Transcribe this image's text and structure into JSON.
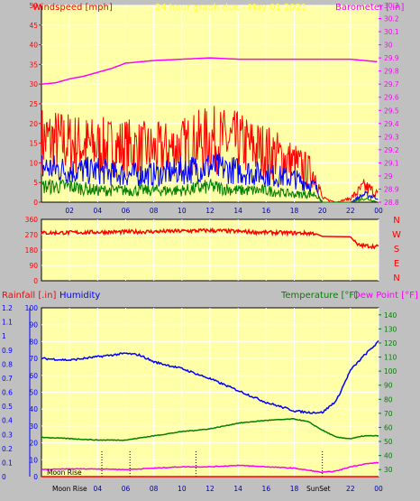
{
  "header": {
    "left_label": "Windspeed [mph]",
    "center_label": "24 hour graph due - May 01 2021",
    "right_label": "Barometer [.in]"
  },
  "colors": {
    "plot_bg": "#ffffa8",
    "frame_bg": "#c0c0c0",
    "red": "#ff0000",
    "blue": "#0000ff",
    "green": "#008000",
    "magenta": "#ff00ff",
    "yellow": "#ffff40",
    "grid": "#ffffff"
  },
  "chart_data": [
    {
      "type": "line",
      "name": "wind-barometer",
      "xlabel": "",
      "ylabel": "Windspeed [mph]",
      "y2label": "Barometer [.in]",
      "x_ticks": [
        "02",
        "04",
        "06",
        "08",
        "10",
        "12",
        "14",
        "16",
        "18",
        "20",
        "22",
        "00"
      ],
      "ylim": [
        0,
        50
      ],
      "y_ticks": [
        0,
        5,
        10,
        15,
        20,
        25,
        30,
        35,
        40,
        45,
        50
      ],
      "y2lim": [
        28.8,
        30.3
      ],
      "y2_ticks": [
        "28.8",
        "28.9",
        "29",
        "29.1",
        "29.2",
        "29.3",
        "29.4",
        "29.5",
        "29.6",
        "29.7",
        "29.8",
        "29.9",
        "30",
        "30.1",
        "30.2",
        "30.3"
      ],
      "series": [
        {
          "color": "red",
          "hours": [
            0,
            2,
            4,
            6,
            8,
            10,
            12,
            14,
            16,
            18,
            19.5,
            20,
            21,
            22,
            23,
            24
          ],
          "values": [
            16,
            15,
            14,
            14,
            13,
            14,
            16,
            15,
            13,
            10,
            7,
            1,
            0,
            1,
            4,
            2
          ]
        },
        {
          "color": "blue",
          "hours": [
            0,
            2,
            4,
            6,
            8,
            10,
            12,
            14,
            16,
            18,
            19.5,
            20,
            21,
            22,
            23,
            24
          ],
          "values": [
            9,
            8,
            8,
            7,
            7,
            8,
            9,
            8,
            7,
            6,
            4,
            0,
            0,
            0,
            2,
            1
          ]
        },
        {
          "color": "green",
          "hours": [
            0,
            2,
            4,
            6,
            8,
            10,
            12,
            14,
            16,
            18,
            19.5,
            20,
            21,
            22,
            23,
            24
          ],
          "values": [
            4,
            4,
            3,
            3,
            3,
            3,
            4,
            3,
            3,
            2,
            2,
            0,
            0,
            0,
            1,
            0
          ]
        },
        {
          "color": "magenta",
          "axis": "right",
          "hours": [
            0,
            1,
            2,
            3,
            4,
            5,
            6,
            8,
            10,
            12,
            14,
            16,
            18,
            20,
            22,
            23,
            24
          ],
          "values": [
            29.7,
            29.71,
            29.74,
            29.76,
            29.79,
            29.82,
            29.86,
            29.88,
            29.89,
            29.9,
            29.89,
            29.89,
            29.89,
            29.89,
            29.89,
            29.88,
            29.87
          ]
        }
      ]
    },
    {
      "type": "line",
      "name": "wind-direction",
      "ylim": [
        0,
        360
      ],
      "y_ticks": [
        0,
        90,
        180,
        270,
        360
      ],
      "compass": [
        "N",
        "W",
        "S",
        "E",
        "N"
      ],
      "series": [
        {
          "color": "red",
          "hours": [
            0,
            4,
            8,
            12,
            16,
            19.5,
            20,
            22,
            22.5,
            23,
            24
          ],
          "values": [
            280,
            285,
            288,
            295,
            283,
            278,
            260,
            258,
            210,
            205,
            200
          ]
        }
      ]
    },
    {
      "type": "line",
      "name": "rain-humidity-temperature",
      "labels": {
        "rainfall": "Rainfall [.in]",
        "humidity": "Humidity",
        "temperature": "Temperature [°F]",
        "dewpoint": "Dew Point [°F]"
      },
      "rain_ticks": [
        "0",
        "0.1",
        "0.2",
        "0.3",
        "0.4",
        "0.5",
        "0.6",
        "0.7",
        "0.8",
        "0.9",
        "1",
        "1.1",
        "1.2"
      ],
      "hum_ticks": [
        0,
        10,
        20,
        30,
        40,
        50,
        60,
        70,
        80,
        90,
        100
      ],
      "temp_ticks": [
        30,
        40,
        50,
        60,
        70,
        80,
        90,
        100,
        110,
        120,
        130,
        140
      ],
      "rain_ylim": [
        0,
        1.2
      ],
      "humidity_ylim": [
        0,
        100
      ],
      "temp_ylim": [
        25,
        145
      ],
      "x_ticks": [
        "02",
        "04",
        "06",
        "08",
        "10",
        "12",
        "14",
        "16",
        "18",
        "20",
        "22",
        "00"
      ],
      "moon_rise_label": "Moon Rise",
      "moon_rise_inner_label": "Moon Rise",
      "sunset_label": "SunSet",
      "series": [
        {
          "name": "Humidity",
          "color": "blue",
          "hours": [
            0,
            2,
            4,
            6,
            7,
            8,
            10,
            12,
            14,
            16,
            18,
            19,
            20,
            21,
            22,
            23,
            24
          ],
          "values": [
            70,
            69,
            71,
            73,
            72,
            68,
            64,
            58,
            51,
            44,
            39,
            38,
            38,
            45,
            63,
            72,
            80
          ]
        },
        {
          "name": "Temperature [°F]",
          "color": "green",
          "hours": [
            0,
            2,
            4,
            6,
            8,
            10,
            12,
            14,
            16,
            18,
            19,
            20,
            21,
            22,
            23,
            24
          ],
          "values": [
            53,
            52,
            51,
            51,
            54,
            57,
            59,
            63,
            65,
            66,
            64,
            58,
            53,
            52,
            54,
            54
          ]
        },
        {
          "name": "Dew Point [°F]",
          "color": "magenta",
          "hours": [
            0,
            2,
            4,
            6,
            8,
            10,
            12,
            14,
            16,
            18,
            20,
            21,
            22,
            23,
            24
          ],
          "values": [
            30,
            30.5,
            30.5,
            30,
            31,
            32,
            32,
            33,
            32,
            31,
            28,
            29,
            32,
            34,
            35
          ]
        },
        {
          "name": "Rainfall [.in]",
          "color": "red",
          "hours": [
            0,
            24
          ],
          "values": [
            0,
            0
          ]
        }
      ]
    }
  ]
}
